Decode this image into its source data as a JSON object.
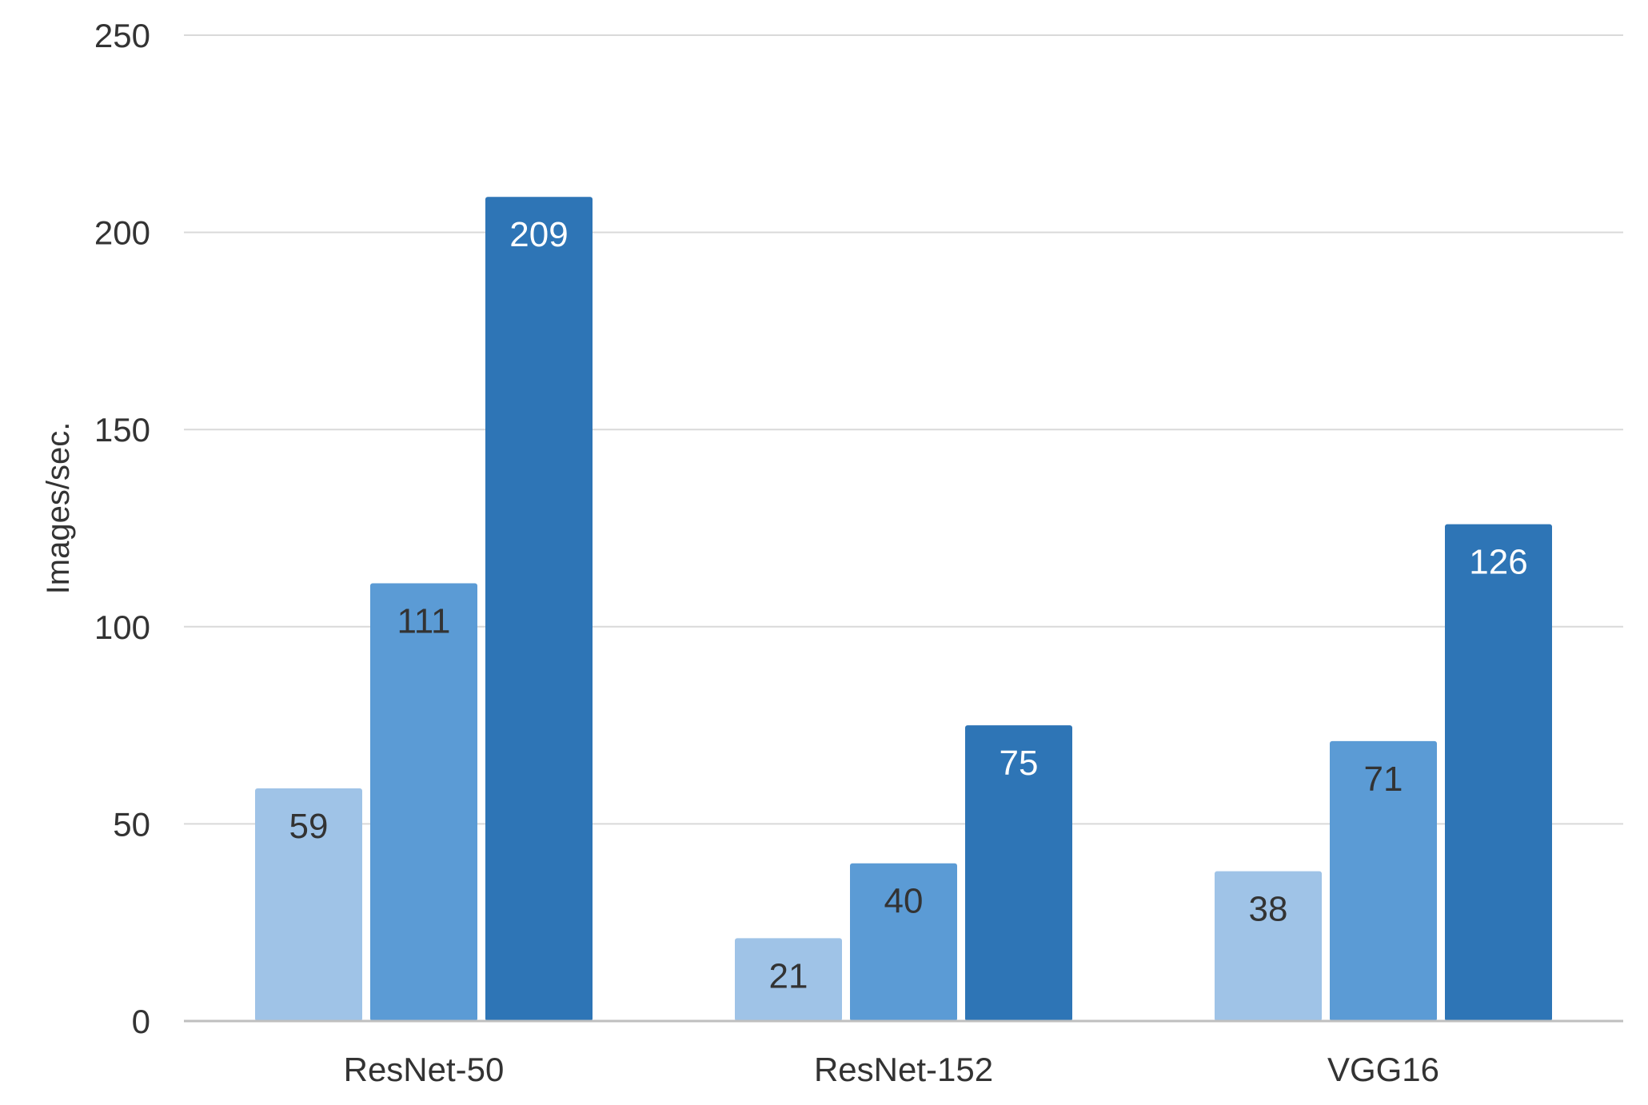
{
  "chart_data": {
    "type": "bar",
    "title": "",
    "xlabel": "",
    "ylabel": "Images/sec.",
    "ylim": [
      0,
      250
    ],
    "yticks": [
      0,
      50,
      100,
      150,
      200,
      250
    ],
    "grid": true,
    "legend": "none",
    "categories": [
      "ResNet-50",
      "ResNet-152",
      "VGG16"
    ],
    "series": [
      {
        "values": [
          59,
          21,
          38
        ],
        "color": "#9fc3e7",
        "label_color": "#333333"
      },
      {
        "values": [
          111,
          40,
          71
        ],
        "color": "#5b9bd5",
        "label_color": "#333333"
      },
      {
        "values": [
          209,
          75,
          126
        ],
        "color": "#2e75b6",
        "label_color": "#ffffff"
      }
    ]
  },
  "colors": {
    "gridline": "#d9d9d9",
    "axis_line": "#bfbfbf",
    "text": "#333333"
  }
}
